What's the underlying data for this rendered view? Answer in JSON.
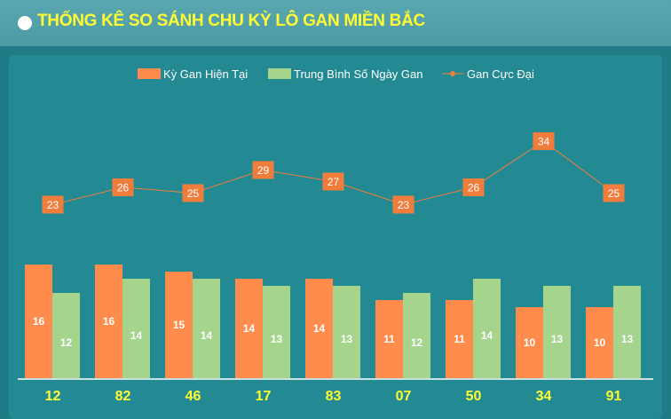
{
  "header": {
    "title": "THỐNG KÊ SO SÁNH CHU KỲ LÔ GAN MIỀN BẮC"
  },
  "colors": {
    "current": "#ff8c4c",
    "average": "#a5d48c",
    "max": "#f07d3c",
    "title": "#ffff33"
  },
  "chart_data": {
    "type": "bar",
    "categories": [
      "12",
      "82",
      "46",
      "17",
      "83",
      "07",
      "50",
      "34",
      "91"
    ],
    "series": [
      {
        "name": "Kỳ Gan Hiện Tại",
        "type": "bar",
        "values": [
          16,
          16,
          15,
          14,
          14,
          11,
          11,
          10,
          10
        ]
      },
      {
        "name": "Trung Bình Số Ngày Gan",
        "type": "bar",
        "values": [
          12,
          14,
          14,
          13,
          13,
          12,
          14,
          13,
          13
        ]
      },
      {
        "name": "Gan Cực Đại",
        "type": "line",
        "values": [
          23,
          26,
          25,
          29,
          27,
          23,
          26,
          34,
          25
        ]
      }
    ],
    "legend": "top-center",
    "grid": false
  }
}
